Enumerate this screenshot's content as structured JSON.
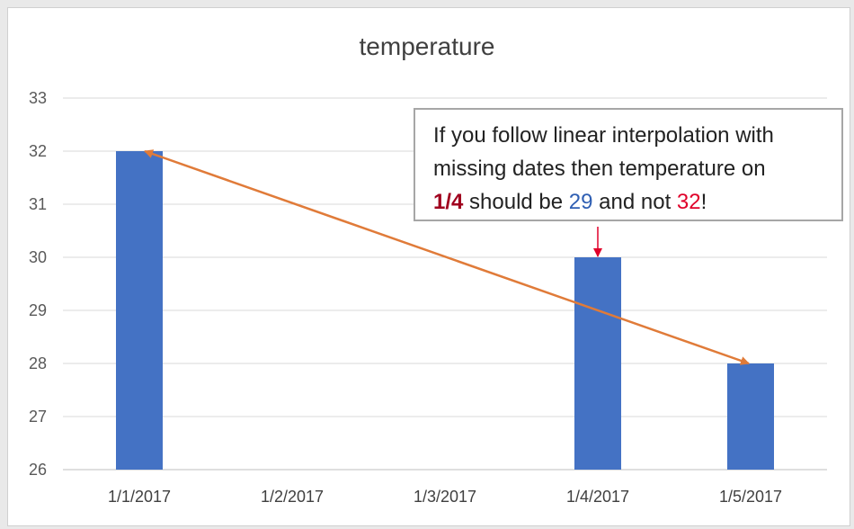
{
  "chart_data": {
    "type": "bar",
    "title": "temperature",
    "categories": [
      "1/1/2017",
      "1/2/2017",
      "1/3/2017",
      "1/4/2017",
      "1/5/2017"
    ],
    "values": [
      32,
      null,
      null,
      30,
      28
    ],
    "ylim": [
      26,
      33
    ],
    "yticks": [
      26,
      27,
      28,
      29,
      30,
      31,
      32,
      33
    ],
    "grid": true,
    "bar_color": "#4472c4",
    "annotation": {
      "line1": "If you follow linear interpolation with",
      "line2": "missing dates then temperature on",
      "line3_date": "1/4",
      "line3_mid": " should be ",
      "line3_interp": "29",
      "line3_and": " and not ",
      "line3_actual": "32",
      "line3_end": "!",
      "arrow_from_category": "1/1/2017",
      "arrow_to_category": "1/5/2017",
      "pointer_category": "1/4/2017"
    },
    "colors": {
      "arrow": "#e07b39",
      "date_text": "#a0001e",
      "interp_text": "#2f5fb3",
      "actual_text": "#e0002a",
      "pointer": "#e0002a"
    }
  }
}
